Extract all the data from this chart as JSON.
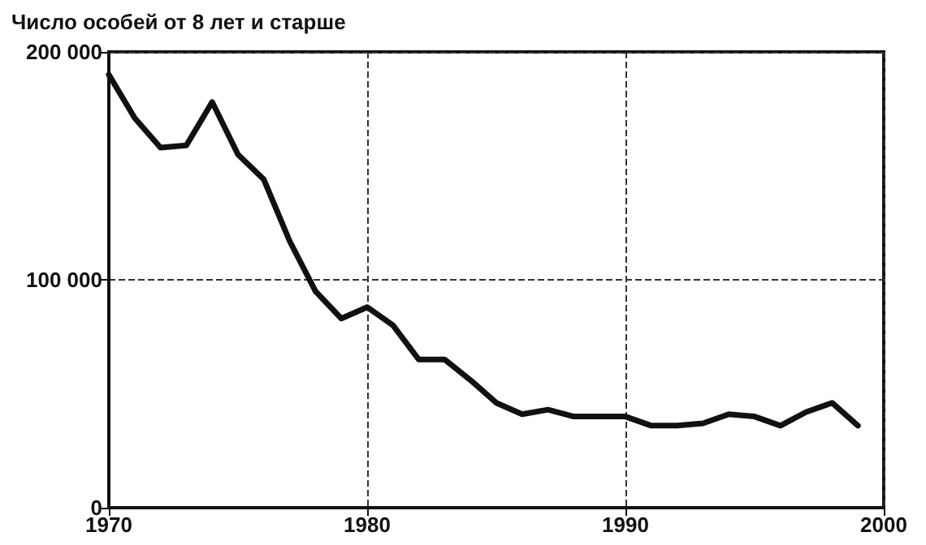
{
  "chart_data": {
    "type": "line",
    "title": "Число особей от 8 лет и старше",
    "x": [
      1970,
      1971,
      1972,
      1973,
      1974,
      1975,
      1976,
      1977,
      1978,
      1979,
      1980,
      1981,
      1982,
      1983,
      1984,
      1985,
      1986,
      1987,
      1988,
      1989,
      1990,
      1991,
      1992,
      1993,
      1994,
      1995,
      1996,
      1997,
      1998,
      1999
    ],
    "series": [
      {
        "color": "#111111",
        "values": [
          190000,
          171000,
          158000,
          159000,
          178000,
          155000,
          144000,
          117000,
          95000,
          83000,
          88000,
          80000,
          65000,
          65000,
          56000,
          46000,
          41000,
          43000,
          40000,
          40000,
          40000,
          36000,
          36000,
          37000,
          41000,
          40000,
          36000,
          42000,
          46000,
          36000
        ]
      }
    ],
    "xlim": [
      1970,
      2000
    ],
    "xticks": [
      1970,
      1980,
      1990,
      2000
    ],
    "ylim": [
      0,
      200000
    ],
    "yticks": [
      {
        "value": 0,
        "label": "0"
      },
      {
        "value": 100000,
        "label": "100 000"
      },
      {
        "value": 200000,
        "label": "200 000"
      }
    ],
    "grid": true,
    "marker": "none",
    "line_style": "solid"
  }
}
